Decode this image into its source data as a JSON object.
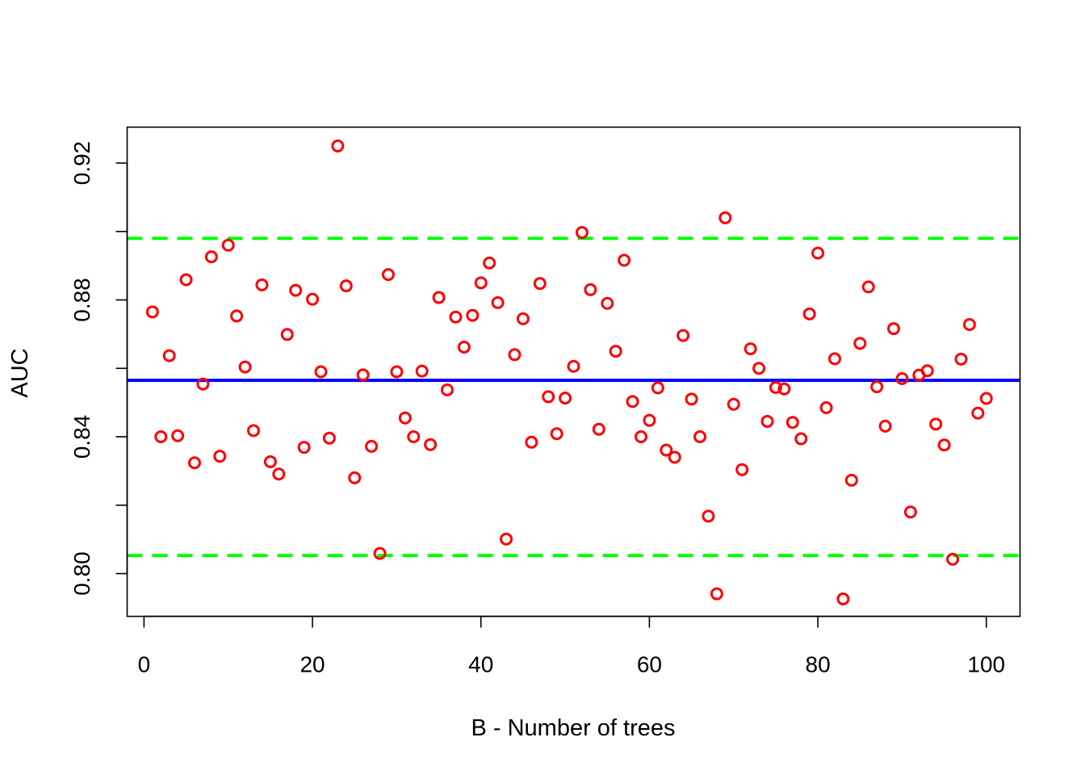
{
  "chart_data": {
    "type": "scatter",
    "title": "",
    "xlabel": "B - Number of trees",
    "ylabel": "AUC",
    "xlim": [
      -2,
      104
    ],
    "ylim": [
      0.7875,
      0.9305
    ],
    "xticks": [
      0,
      20,
      40,
      60,
      80,
      100
    ],
    "xtick_labels": [
      "0",
      "20",
      "40",
      "60",
      "80",
      "100"
    ],
    "yticks": [
      0.8,
      0.82,
      0.84,
      0.86,
      0.88,
      0.9,
      0.92
    ],
    "ytick_labels": [
      "0.80",
      "",
      "0.84",
      "",
      "0.88",
      "",
      "0.92"
    ],
    "grid": false,
    "legend": "none",
    "point_color": "#ff0000",
    "mean_line_color": "#0000ff",
    "bound_line_color": "#00ff00",
    "points": {
      "x": [
        1,
        2,
        3,
        4,
        5,
        6,
        7,
        8,
        9,
        10,
        11,
        12,
        13,
        14,
        15,
        16,
        17,
        18,
        19,
        20,
        21,
        22,
        23,
        24,
        25,
        26,
        27,
        28,
        29,
        30,
        31,
        32,
        33,
        34,
        35,
        36,
        37,
        38,
        39,
        40,
        41,
        42,
        43,
        44,
        45,
        46,
        47,
        48,
        49,
        50,
        51,
        52,
        53,
        54,
        55,
        56,
        57,
        58,
        59,
        60,
        61,
        62,
        63,
        64,
        65,
        66,
        67,
        68,
        69,
        70,
        71,
        72,
        73,
        74,
        75,
        76,
        77,
        78,
        79,
        80,
        81,
        82,
        83,
        84,
        85,
        86,
        87,
        88,
        89,
        90,
        91,
        92,
        93,
        94,
        95,
        96,
        97,
        98,
        99,
        100
      ],
      "y": [
        0.8765,
        0.84,
        0.8637,
        0.8403,
        0.8859,
        0.8324,
        0.8554,
        0.8926,
        0.8343,
        0.896,
        0.8753,
        0.8604,
        0.8418,
        0.8844,
        0.8327,
        0.8291,
        0.8699,
        0.8828,
        0.8369,
        0.8802,
        0.859,
        0.8396,
        0.925,
        0.8841,
        0.828,
        0.8581,
        0.8372,
        0.8059,
        0.8874,
        0.859,
        0.8455,
        0.84,
        0.8592,
        0.8377,
        0.8807,
        0.8537,
        0.875,
        0.8662,
        0.8755,
        0.885,
        0.8908,
        0.8792,
        0.8101,
        0.864,
        0.8745,
        0.8384,
        0.8848,
        0.8517,
        0.8409,
        0.8513,
        0.8606,
        0.8997,
        0.883,
        0.8422,
        0.879,
        0.865,
        0.8916,
        0.8503,
        0.84,
        0.8448,
        0.8543,
        0.8361,
        0.834,
        0.8696,
        0.851,
        0.84,
        0.8168,
        0.7941,
        0.904,
        0.8495,
        0.8304,
        0.8657,
        0.86,
        0.8445,
        0.8544,
        0.854,
        0.8442,
        0.8394,
        0.8759,
        0.8937,
        0.8485,
        0.8628,
        0.7926,
        0.8273,
        0.8673,
        0.8838,
        0.8546,
        0.8431,
        0.8716,
        0.857,
        0.818,
        0.858,
        0.8593,
        0.8437,
        0.8376,
        0.8042,
        0.8627,
        0.8728,
        0.8469,
        0.8512
      ]
    },
    "mean_line": 0.8565,
    "upper_bound": 0.898,
    "lower_bound": 0.8053
  }
}
